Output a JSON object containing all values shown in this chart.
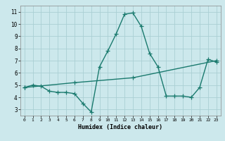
{
  "xlabel": "Humidex (Indice chaleur)",
  "bg_color": "#cce8ec",
  "grid_color": "#aacfd4",
  "line_color": "#1a7a6e",
  "xlim": [
    -0.5,
    23.5
  ],
  "ylim": [
    2.5,
    11.5
  ],
  "xticks": [
    0,
    1,
    2,
    3,
    4,
    5,
    6,
    7,
    8,
    9,
    10,
    11,
    12,
    13,
    14,
    15,
    16,
    17,
    18,
    19,
    20,
    21,
    22,
    23
  ],
  "yticks": [
    3,
    4,
    5,
    6,
    7,
    8,
    9,
    10,
    11
  ],
  "line1_x": [
    0,
    1,
    2,
    3,
    4,
    5,
    6,
    7,
    8,
    9,
    10,
    11,
    12,
    13,
    14,
    15,
    16,
    17,
    18,
    19,
    20,
    21,
    22,
    23
  ],
  "line1_y": [
    4.8,
    5.0,
    4.9,
    4.5,
    4.4,
    4.4,
    4.3,
    3.5,
    2.8,
    6.5,
    7.8,
    9.2,
    10.8,
    10.9,
    9.8,
    7.6,
    6.5,
    4.1,
    4.1,
    4.1,
    4.0,
    4.8,
    7.1,
    6.9
  ],
  "line2_x": [
    0,
    6,
    13,
    23
  ],
  "line2_y": [
    4.8,
    5.2,
    5.6,
    7.0
  ],
  "marker": "+",
  "markersize": 4,
  "linewidth": 1.0
}
